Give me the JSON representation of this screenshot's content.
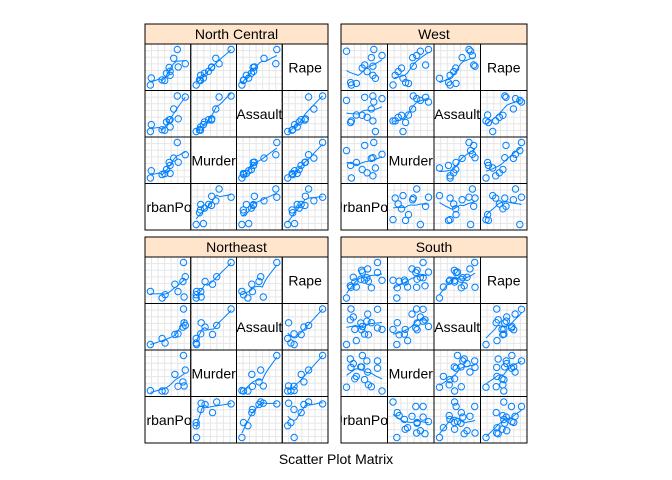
{
  "chart_data": {
    "type": "scatter",
    "chart_kind": "scatter plot matrix",
    "xlabel": "Scatter Plot Matrix",
    "variables": [
      "UrbanPop",
      "Murder",
      "Assault",
      "Rape"
    ],
    "diagonal_labels": [
      "UrbanPop",
      "Murder",
      "Assault",
      "Rape"
    ],
    "grid": true,
    "smoother": "loess",
    "colors": {
      "point": "#0080ff",
      "strip": "#ffe5cc",
      "grid": "#e6e6e6",
      "border": "#000000"
    },
    "panels": [
      {
        "label": "North Central",
        "data": [
          {
            "UrbanPop": 83,
            "Murder": 10.4,
            "Assault": 249,
            "Rape": 24.0
          },
          {
            "UrbanPop": 65,
            "Murder": 7.2,
            "Assault": 113,
            "Rape": 21.0
          },
          {
            "UrbanPop": 57,
            "Murder": 2.2,
            "Assault": 56,
            "Rape": 11.3
          },
          {
            "UrbanPop": 66,
            "Murder": 6.0,
            "Assault": 115,
            "Rape": 18.0
          },
          {
            "UrbanPop": 74,
            "Murder": 15.4,
            "Assault": 255,
            "Rape": 35.1
          },
          {
            "UrbanPop": 66,
            "Murder": 2.7,
            "Assault": 72,
            "Rape": 14.9
          },
          {
            "UrbanPop": 70,
            "Murder": 9.0,
            "Assault": 178,
            "Rape": 28.2
          },
          {
            "UrbanPop": 62,
            "Murder": 4.3,
            "Assault": 102,
            "Rape": 16.5
          },
          {
            "UrbanPop": 44,
            "Murder": 0.8,
            "Assault": 45,
            "Rape": 7.3
          },
          {
            "UrbanPop": 75,
            "Murder": 7.3,
            "Assault": 120,
            "Rape": 21.4
          },
          {
            "UrbanPop": 45,
            "Murder": 3.8,
            "Assault": 86,
            "Rape": 12.8
          },
          {
            "UrbanPop": 60,
            "Murder": 2.6,
            "Assault": 53,
            "Rape": 10.8
          }
        ]
      },
      {
        "label": "West",
        "data": [
          {
            "UrbanPop": 48,
            "Murder": 10.0,
            "Assault": 263,
            "Rape": 44.5
          },
          {
            "UrbanPop": 80,
            "Murder": 8.1,
            "Assault": 294,
            "Rape": 31.0
          },
          {
            "UrbanPop": 91,
            "Murder": 9.0,
            "Assault": 276,
            "Rape": 40.6
          },
          {
            "UrbanPop": 78,
            "Murder": 7.9,
            "Assault": 204,
            "Rape": 38.7
          },
          {
            "UrbanPop": 83,
            "Murder": 5.3,
            "Assault": 46,
            "Rape": 20.2
          },
          {
            "UrbanPop": 54,
            "Murder": 2.6,
            "Assault": 120,
            "Rape": 14.2
          },
          {
            "UrbanPop": 53,
            "Murder": 6.0,
            "Assault": 109,
            "Rape": 16.4
          },
          {
            "UrbanPop": 81,
            "Murder": 12.2,
            "Assault": 252,
            "Rape": 46.0
          },
          {
            "UrbanPop": 70,
            "Murder": 11.4,
            "Assault": 285,
            "Rape": 32.1
          },
          {
            "UrbanPop": 67,
            "Murder": 4.9,
            "Assault": 159,
            "Rape": 29.3
          },
          {
            "UrbanPop": 80,
            "Murder": 3.2,
            "Assault": 120,
            "Rape": 22.9
          },
          {
            "UrbanPop": 73,
            "Murder": 4.0,
            "Assault": 145,
            "Rape": 26.2
          },
          {
            "UrbanPop": 60,
            "Murder": 6.8,
            "Assault": 161,
            "Rape": 15.6
          }
        ]
      },
      {
        "label": "Northeast",
        "data": [
          {
            "UrbanPop": 77,
            "Murder": 3.3,
            "Assault": 110,
            "Rape": 11.1
          },
          {
            "UrbanPop": 51,
            "Murder": 2.1,
            "Assault": 83,
            "Rape": 7.8
          },
          {
            "UrbanPop": 85,
            "Murder": 4.4,
            "Assault": 149,
            "Rape": 16.3
          },
          {
            "UrbanPop": 56,
            "Murder": 2.1,
            "Assault": 57,
            "Rape": 9.5
          },
          {
            "UrbanPop": 89,
            "Murder": 7.4,
            "Assault": 159,
            "Rape": 18.8
          },
          {
            "UrbanPop": 86,
            "Murder": 11.1,
            "Assault": 254,
            "Rape": 26.1
          },
          {
            "UrbanPop": 72,
            "Murder": 6.3,
            "Assault": 106,
            "Rape": 14.9
          },
          {
            "UrbanPop": 87,
            "Murder": 3.4,
            "Assault": 174,
            "Rape": 8.3
          },
          {
            "UrbanPop": 32,
            "Murder": 2.2,
            "Assault": 48,
            "Rape": 11.2
          }
        ]
      },
      {
        "label": "South",
        "data": [
          {
            "UrbanPop": 58,
            "Murder": 13.2,
            "Assault": 236,
            "Rape": 21.2
          },
          {
            "UrbanPop": 50,
            "Murder": 8.8,
            "Assault": 190,
            "Rape": 19.5
          },
          {
            "UrbanPop": 72,
            "Murder": 5.9,
            "Assault": 238,
            "Rape": 15.8
          },
          {
            "UrbanPop": 80,
            "Murder": 15.4,
            "Assault": 335,
            "Rape": 31.9
          },
          {
            "UrbanPop": 60,
            "Murder": 17.4,
            "Assault": 211,
            "Rape": 25.8
          },
          {
            "UrbanPop": 52,
            "Murder": 9.7,
            "Assault": 109,
            "Rape": 16.3
          },
          {
            "UrbanPop": 66,
            "Murder": 15.4,
            "Assault": 249,
            "Rape": 22.2
          },
          {
            "UrbanPop": 67,
            "Murder": 11.3,
            "Assault": 300,
            "Rape": 27.8
          },
          {
            "UrbanPop": 44,
            "Murder": 16.1,
            "Assault": 259,
            "Rape": 17.1
          },
          {
            "UrbanPop": 45,
            "Murder": 13.0,
            "Assault": 337,
            "Rape": 16.1
          },
          {
            "UrbanPop": 68,
            "Murder": 6.6,
            "Assault": 151,
            "Rape": 20.0
          },
          {
            "UrbanPop": 48,
            "Murder": 14.4,
            "Assault": 279,
            "Rape": 22.5
          },
          {
            "UrbanPop": 59,
            "Murder": 13.2,
            "Assault": 188,
            "Rape": 26.9
          },
          {
            "UrbanPop": 80,
            "Murder": 12.7,
            "Assault": 201,
            "Rape": 25.5
          },
          {
            "UrbanPop": 63,
            "Murder": 8.5,
            "Assault": 156,
            "Rape": 20.7
          },
          {
            "UrbanPop": 39,
            "Murder": 5.7,
            "Assault": 81,
            "Rape": 9.3
          },
          {
            "UrbanPop": 86,
            "Murder": 4.3,
            "Assault": 190,
            "Rape": 20.6
          }
        ]
      }
    ]
  }
}
